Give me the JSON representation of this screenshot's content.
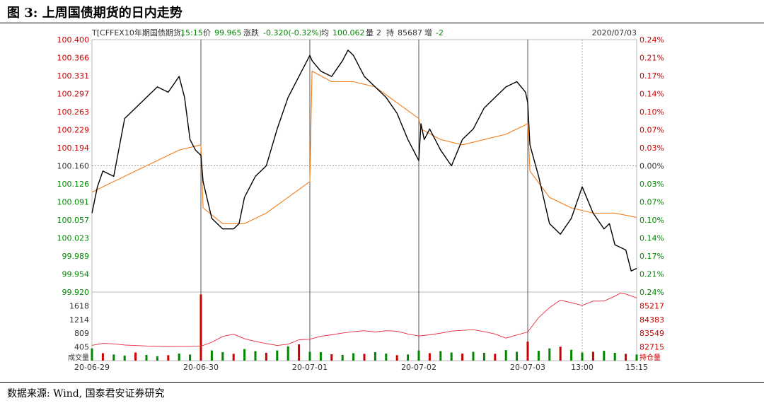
{
  "figure": {
    "title": "图 3:  上周国债期货的日内走势",
    "source": "数据来源:  Wind,  国泰君安证券研究"
  },
  "chart_data": {
    "type": "line",
    "info_bar": {
      "symbol": "T[CFFEX10年期国债期货]",
      "time": "15:15",
      "price_label": "价",
      "price": "99.965",
      "change_label": "涨跌",
      "change": "-0.320(-0.32%)",
      "avg_label": "均",
      "avg": "100.062",
      "volume_label": "量",
      "volume": "2",
      "oi_label": "持",
      "oi": "85687",
      "oi_change_label": "增",
      "oi_change": "-2",
      "date": "2020/07/03"
    },
    "price_axis": {
      "ylim": [
        99.92,
        100.4
      ],
      "reference": 100.16,
      "ticks": [
        "100.400",
        "100.366",
        "100.331",
        "100.297",
        "100.263",
        "100.229",
        "100.194",
        "100.160",
        "100.126",
        "100.091",
        "100.057",
        "100.023",
        "99.989",
        "99.954",
        "99.920"
      ],
      "pct_ticks": [
        "0.24%",
        "0.21%",
        "0.17%",
        "0.14%",
        "0.10%",
        "0.07%",
        "0.03%",
        "0.00%",
        "0.03%",
        "0.07%",
        "0.10%",
        "0.14%",
        "0.17%",
        "0.21%",
        "0.24%"
      ]
    },
    "volume_axis": {
      "label": "成交量",
      "ylim": [
        0,
        2022
      ],
      "ticks": [
        "1618",
        "1214",
        "809",
        "405"
      ]
    },
    "oi_axis": {
      "label": "持仓量",
      "ticks": [
        "85217",
        "84383",
        "83549",
        "82715"
      ]
    },
    "x_ticks": [
      "20-06-29",
      "20-06-30",
      "20-07-01",
      "20-07-02",
      "20-07-03",
      "13:00",
      "15:15"
    ],
    "x_tick_pos": [
      0,
      1,
      2,
      3,
      4,
      4.5,
      5
    ],
    "session_boundaries": [
      1,
      2,
      3,
      4
    ],
    "intraday_marker": 4.5,
    "series": [
      {
        "name": "价",
        "color": "#000000",
        "x": [
          0,
          0.05,
          0.1,
          0.2,
          0.3,
          0.4,
          0.5,
          0.6,
          0.7,
          0.8,
          0.85,
          0.9,
          0.95,
          1,
          1.02,
          1.1,
          1.2,
          1.3,
          1.35,
          1.4,
          1.5,
          1.6,
          1.7,
          1.8,
          1.9,
          1.95,
          2,
          2.02,
          2.1,
          2.2,
          2.3,
          2.35,
          2.4,
          2.5,
          2.6,
          2.7,
          2.8,
          2.9,
          3,
          3.02,
          3.05,
          3.1,
          3.2,
          3.3,
          3.4,
          3.5,
          3.6,
          3.7,
          3.8,
          3.9,
          3.98,
          4,
          4.02,
          4.1,
          4.2,
          4.3,
          4.4,
          4.5,
          4.6,
          4.7,
          4.75,
          4.8,
          4.9,
          4.95,
          5
        ],
        "y": [
          100.07,
          100.12,
          100.15,
          100.14,
          100.25,
          100.27,
          100.29,
          100.31,
          100.3,
          100.33,
          100.29,
          100.21,
          100.19,
          100.18,
          100.13,
          100.06,
          100.04,
          100.04,
          100.05,
          100.1,
          100.14,
          100.16,
          100.23,
          100.29,
          100.33,
          100.35,
          100.37,
          100.36,
          100.34,
          100.33,
          100.36,
          100.38,
          100.37,
          100.33,
          100.31,
          100.29,
          100.26,
          100.21,
          100.17,
          100.24,
          100.21,
          100.23,
          100.19,
          100.16,
          100.21,
          100.23,
          100.27,
          100.29,
          100.31,
          100.32,
          100.3,
          100.28,
          100.2,
          100.14,
          100.05,
          100.03,
          100.06,
          100.12,
          100.07,
          100.04,
          100.05,
          100.01,
          100.0,
          99.96,
          99.965
        ]
      },
      {
        "name": "均",
        "color": "#f07d1c",
        "x": [
          0,
          0.2,
          0.4,
          0.6,
          0.8,
          1,
          1.02,
          1.2,
          1.4,
          1.6,
          1.8,
          2,
          2.02,
          2.2,
          2.4,
          2.6,
          2.8,
          3,
          3.02,
          3.2,
          3.4,
          3.6,
          3.8,
          4,
          4.02,
          4.2,
          4.4,
          4.6,
          4.8,
          5
        ],
        "y": [
          100.11,
          100.13,
          100.15,
          100.17,
          100.19,
          100.2,
          100.08,
          100.05,
          100.05,
          100.07,
          100.1,
          100.13,
          100.34,
          100.32,
          100.32,
          100.31,
          100.28,
          100.25,
          100.23,
          100.21,
          100.2,
          100.21,
          100.22,
          100.24,
          100.15,
          100.1,
          100.08,
          100.07,
          100.07,
          100.062
        ]
      },
      {
        "name": "成交量",
        "color": "#008800",
        "x": [
          0,
          0.1,
          0.2,
          0.3,
          0.4,
          0.5,
          0.6,
          0.7,
          0.8,
          0.9,
          1,
          1.1,
          1.2,
          1.3,
          1.4,
          1.5,
          1.6,
          1.7,
          1.8,
          1.9,
          2,
          2.1,
          2.2,
          2.3,
          2.4,
          2.5,
          2.6,
          2.7,
          2.8,
          2.9,
          3,
          3.1,
          3.2,
          3.3,
          3.4,
          3.5,
          3.6,
          3.7,
          3.8,
          3.9,
          4,
          4.1,
          4.2,
          4.3,
          4.4,
          4.5,
          4.6,
          4.7,
          4.8,
          4.9,
          5
        ],
        "y": [
          360,
          220,
          180,
          150,
          240,
          170,
          130,
          160,
          210,
          180,
          1950,
          300,
          250,
          200,
          340,
          280,
          230,
          300,
          420,
          480,
          260,
          250,
          190,
          170,
          220,
          200,
          250,
          210,
          160,
          180,
          300,
          220,
          280,
          240,
          210,
          260,
          230,
          200,
          310,
          260,
          560,
          290,
          360,
          410,
          320,
          240,
          260,
          290,
          230,
          200,
          180
        ]
      },
      {
        "name": "持仓量",
        "color": "#e8273b",
        "x": [
          0,
          0.1,
          0.2,
          0.3,
          0.5,
          0.7,
          0.9,
          1,
          1.1,
          1.2,
          1.3,
          1.4,
          1.5,
          1.6,
          1.7,
          1.8,
          1.9,
          2,
          2.1,
          2.2,
          2.3,
          2.4,
          2.5,
          2.6,
          2.7,
          2.8,
          2.9,
          3,
          3.1,
          3.2,
          3.3,
          3.4,
          3.5,
          3.6,
          3.7,
          3.8,
          3.9,
          4,
          4.1,
          4.2,
          4.3,
          4.4,
          4.5,
          4.6,
          4.7,
          4.8,
          4.85,
          4.9,
          5
        ],
        "y": [
          82810,
          82930,
          82900,
          82830,
          82770,
          82740,
          82750,
          82760,
          83000,
          83350,
          83490,
          83210,
          83050,
          82920,
          82800,
          82880,
          83150,
          83180,
          83360,
          83450,
          83560,
          83640,
          83700,
          83620,
          83700,
          83670,
          83500,
          83380,
          83450,
          83550,
          83680,
          83720,
          83760,
          83640,
          83500,
          83250,
          83440,
          83620,
          84500,
          85100,
          85560,
          85400,
          85240,
          85500,
          85500,
          85800,
          85980,
          85930,
          85690
        ]
      }
    ]
  }
}
